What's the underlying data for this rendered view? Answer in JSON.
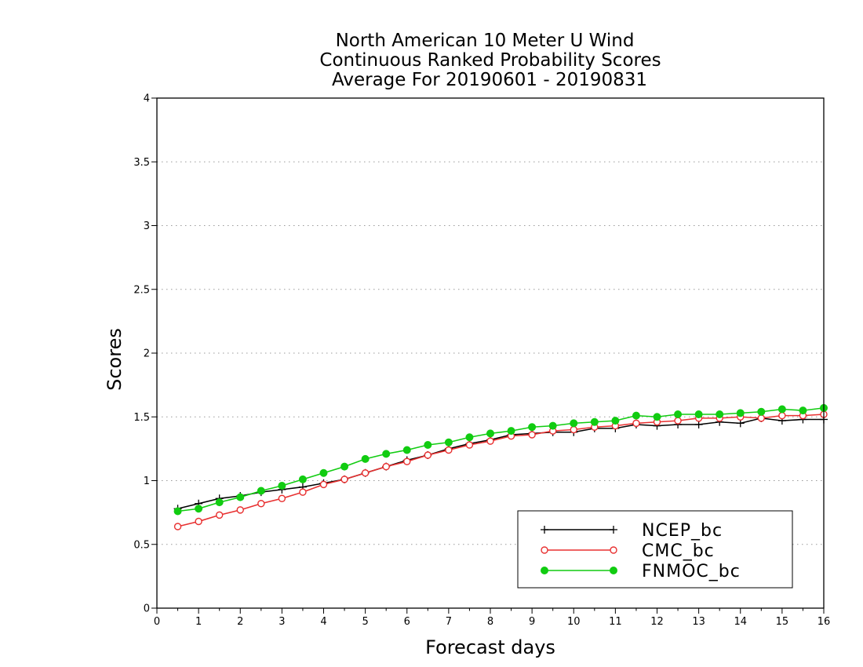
{
  "title_lines": [
    "North American 10 Meter U Wind",
    "Continuous Ranked Probability Scores",
    "Average For 20190601 - 20190831"
  ],
  "chart_data": {
    "type": "line",
    "title": "North American 10 Meter U Wind / Continuous Ranked Probability Scores / Average For 20190601 - 20190831",
    "xlabel": "Forecast days",
    "ylabel": "Scores",
    "xlim": [
      0,
      16
    ],
    "ylim": [
      0,
      4
    ],
    "x_ticks": [
      0,
      1,
      2,
      3,
      4,
      5,
      6,
      7,
      8,
      9,
      10,
      11,
      12,
      13,
      14,
      15,
      16
    ],
    "y_ticks": [
      0,
      0.5,
      1,
      1.5,
      2,
      2.5,
      3,
      3.5,
      4
    ],
    "y_tick_labels": [
      "0",
      "0.5",
      "1",
      "1.5",
      "2",
      "2.5",
      "3",
      "3.5",
      "4"
    ],
    "grid": "horizontal dotted",
    "legend_position": "bottom-right",
    "x": [
      0.5,
      1.0,
      1.5,
      2.0,
      2.5,
      3.0,
      3.5,
      4.0,
      4.5,
      5.0,
      5.5,
      6.0,
      6.5,
      7.0,
      7.5,
      8.0,
      8.5,
      9.0,
      9.5,
      10.0,
      10.5,
      11.0,
      11.5,
      12.0,
      12.5,
      13.0,
      13.5,
      14.0,
      14.5,
      15.0,
      15.5,
      16.0
    ],
    "series": [
      {
        "name": "NCEP_bc",
        "color": "#000000",
        "marker": "plus",
        "values": [
          0.78,
          0.82,
          0.86,
          0.88,
          0.91,
          0.93,
          0.95,
          0.98,
          1.01,
          1.06,
          1.11,
          1.16,
          1.2,
          1.25,
          1.29,
          1.32,
          1.36,
          1.37,
          1.38,
          1.38,
          1.41,
          1.41,
          1.44,
          1.43,
          1.44,
          1.44,
          1.46,
          1.45,
          1.49,
          1.47,
          1.48,
          1.48
        ]
      },
      {
        "name": "CMC_bc",
        "color": "#e83030",
        "marker": "open-circle",
        "values": [
          0.64,
          0.68,
          0.73,
          0.77,
          0.82,
          0.86,
          0.91,
          0.97,
          1.01,
          1.06,
          1.11,
          1.15,
          1.2,
          1.24,
          1.28,
          1.31,
          1.35,
          1.36,
          1.39,
          1.4,
          1.42,
          1.43,
          1.45,
          1.46,
          1.47,
          1.49,
          1.49,
          1.5,
          1.49,
          1.51,
          1.51,
          1.52
        ]
      },
      {
        "name": "FNMOC_bc",
        "color": "#11cc11",
        "marker": "filled-circle",
        "values": [
          0.76,
          0.78,
          0.83,
          0.87,
          0.92,
          0.96,
          1.01,
          1.06,
          1.11,
          1.17,
          1.21,
          1.24,
          1.28,
          1.3,
          1.34,
          1.37,
          1.39,
          1.42,
          1.43,
          1.45,
          1.46,
          1.47,
          1.51,
          1.5,
          1.52,
          1.52,
          1.52,
          1.53,
          1.54,
          1.56,
          1.55,
          1.57
        ]
      }
    ]
  }
}
